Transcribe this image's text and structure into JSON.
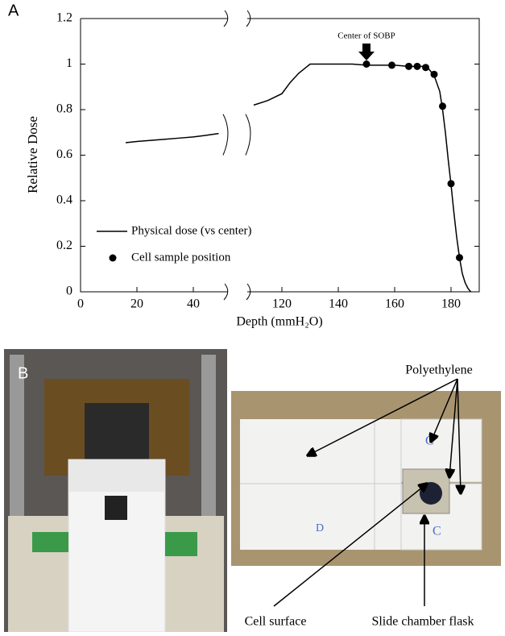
{
  "panel_labels": [
    "A",
    "B"
  ],
  "chart_data": {
    "type": "line",
    "y_label": "Relative Dose",
    "x_label": "Depth (mmH₂O)",
    "xlim": [
      0,
      190
    ],
    "x_break": [
      50,
      110
    ],
    "xticks": [
      0,
      20,
      40,
      120,
      140,
      160,
      180
    ],
    "ylim": [
      0,
      1.2
    ],
    "yticks": [
      0,
      0.2,
      0.4,
      0.6,
      0.8,
      1,
      1.2
    ],
    "legend": "lower left",
    "annotations": [
      {
        "text": "Center of SOBP",
        "x": 150
      }
    ],
    "series": [
      {
        "name": "Physical dose (vs center)",
        "type": "line",
        "color": "#000000",
        "x": [
          16,
          20,
          25,
          30,
          35,
          40,
          45,
          49,
          null,
          110,
          115,
          120,
          123,
          126,
          128,
          130,
          135,
          140,
          145,
          150,
          155,
          160,
          165,
          170,
          172,
          174,
          176,
          177,
          178,
          179,
          180,
          181,
          182,
          183,
          184,
          185,
          186,
          187
        ],
        "values": [
          0.655,
          0.66,
          0.665,
          0.67,
          0.675,
          0.68,
          0.688,
          0.695,
          null,
          0.82,
          0.84,
          0.87,
          0.92,
          0.96,
          0.98,
          1.0,
          1.0,
          1.0,
          1.0,
          0.995,
          0.995,
          0.995,
          0.99,
          0.99,
          0.98,
          0.95,
          0.88,
          0.8,
          0.7,
          0.58,
          0.47,
          0.35,
          0.24,
          0.15,
          0.08,
          0.04,
          0.015,
          0.0
        ]
      },
      {
        "name": "Cell sample position",
        "type": "scatter",
        "color": "#000000",
        "x": [
          150,
          159,
          165,
          168,
          171,
          174,
          177,
          180,
          183
        ],
        "values": [
          1.0,
          0.995,
          0.99,
          0.99,
          0.985,
          0.955,
          0.815,
          0.475,
          0.15
        ]
      }
    ]
  },
  "photo_labels": {
    "material": "Polyethylene",
    "cell": "Cell surface",
    "flask": "Slide chamber flask"
  }
}
